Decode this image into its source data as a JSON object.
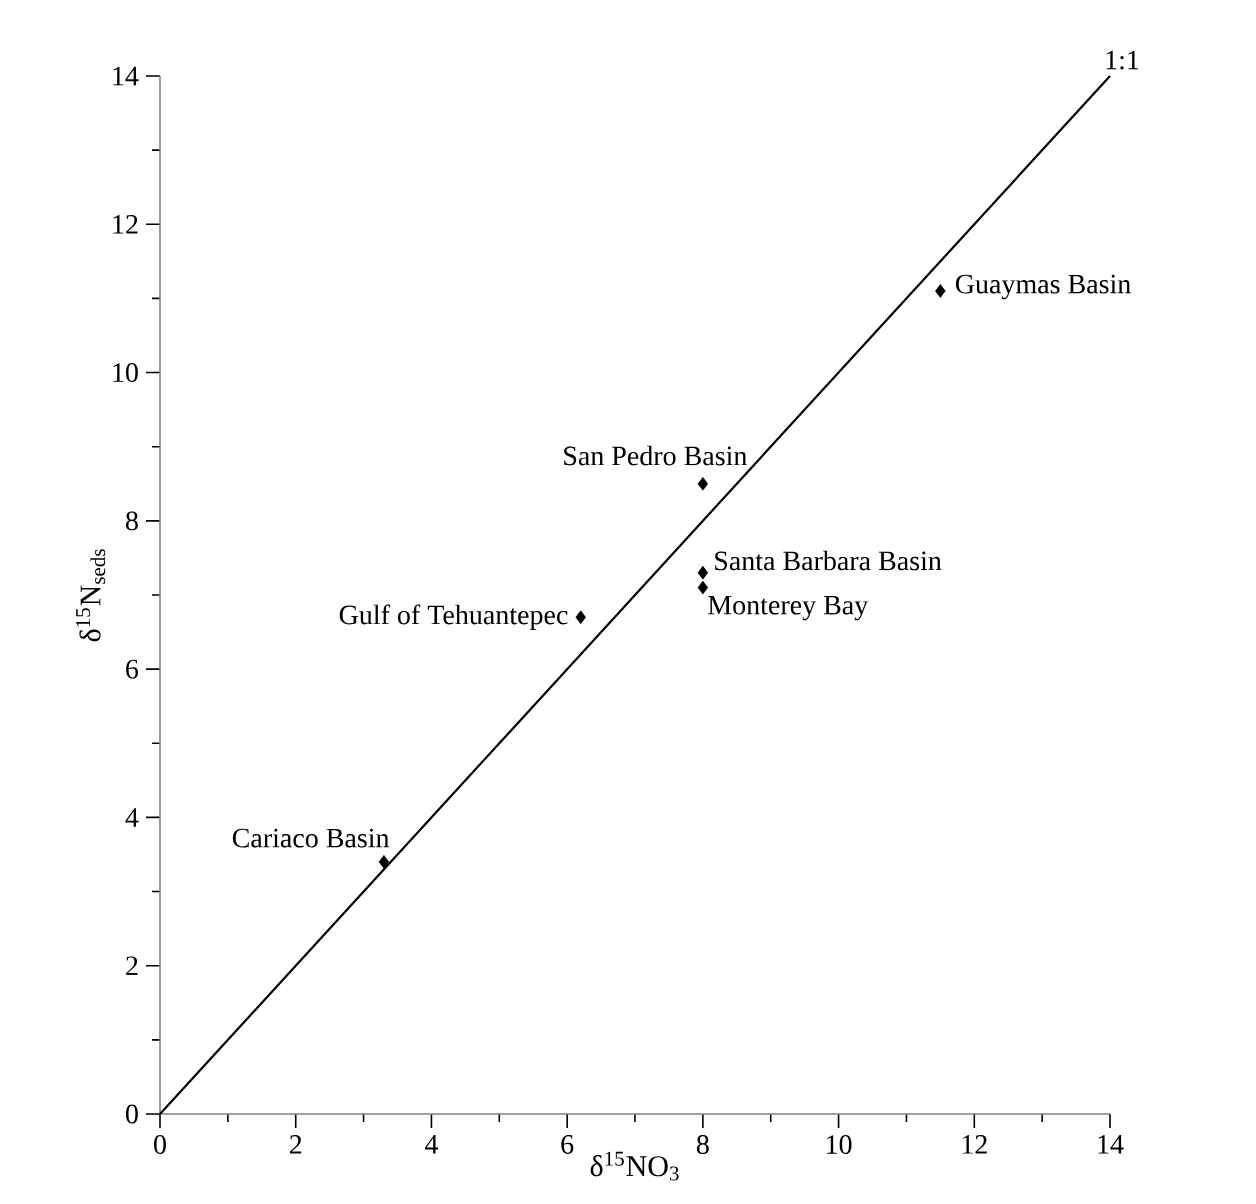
{
  "chart_data": {
    "type": "scatter",
    "xlabel": "δ$^{15}$NO$_{3}$",
    "ylabel": "δ$^{15}$N$_{seds}$",
    "xlim": [
      0,
      14
    ],
    "ylim": [
      0,
      14
    ],
    "xticks": [
      0,
      2,
      4,
      6,
      8,
      10,
      12,
      14
    ],
    "yticks": [
      0,
      2,
      4,
      6,
      8,
      10,
      12,
      14
    ],
    "series": [
      {
        "marker": "diamond",
        "color": "#000000",
        "x": [
          3.3,
          6.2,
          8,
          8,
          8,
          11.5
        ],
        "values": [
          3.4,
          6.7,
          8.5,
          7.3,
          7.1,
          11.1
        ]
      },
      {
        "type": "line",
        "marker": "none",
        "line_style": "solid",
        "color": "#000000",
        "x": [
          0,
          14
        ],
        "values": [
          0,
          14
        ]
      }
    ],
    "annotations": [
      {
        "text": "Cariaco Basin",
        "x": 3.3,
        "y": 3.4
      },
      {
        "text": "Gulf of Tehuantepec",
        "x": 6.2,
        "y": 6.7
      },
      {
        "text": "San Pedro Basin",
        "x": 8,
        "y": 8.5
      },
      {
        "text": "Santa Barbara Basin",
        "x": 8,
        "y": 7.3
      },
      {
        "text": "Monterey Bay",
        "x": 8,
        "y": 7.1
      },
      {
        "text": "Guaymas Basin",
        "x": 11.5,
        "y": 11.1
      },
      {
        "text": "1:1",
        "x": 14,
        "y": 14
      }
    ]
  }
}
